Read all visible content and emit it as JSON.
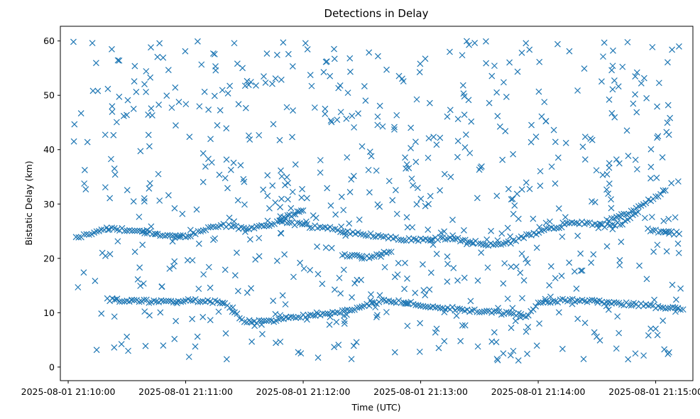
{
  "chart_data": {
    "type": "scatter",
    "title": "Detections in Delay",
    "xlabel": "Time (UTC)",
    "ylabel": "Bistatic Delay (km)",
    "x_is_datetime": true,
    "xlim": [
      "2025-08-01 21:09:56",
      "2025-08-01 21:15:19"
    ],
    "ylim": [
      -2.5,
      62.7
    ],
    "grid": false,
    "legend": "none",
    "marker": "x",
    "color": "#1f77b4",
    "xtick_labels": [
      "2025-08-01 21:10:00",
      "2025-08-01 21:11:00",
      "2025-08-01 21:12:00",
      "2025-08-01 21:13:00",
      "2025-08-01 21:14:00",
      "2025-08-01 21:15:00"
    ],
    "ytick_labels": [
      "0",
      "10",
      "20",
      "30",
      "40",
      "50",
      "60"
    ],
    "track_upper": [
      [
        "2025-08-01 21:10:04",
        24.0
      ],
      [
        "2025-08-01 21:10:08",
        24.2
      ],
      [
        "2025-08-01 21:10:12",
        24.5
      ],
      [
        "2025-08-01 21:10:17",
        25.2
      ],
      [
        "2025-08-01 21:10:21",
        25.5
      ],
      [
        "2025-08-01 21:10:25",
        25.4
      ],
      [
        "2025-08-01 21:10:30",
        25.2
      ],
      [
        "2025-08-01 21:10:34",
        25.0
      ],
      [
        "2025-08-01 21:10:39",
        24.8
      ],
      [
        "2025-08-01 21:10:43",
        24.6
      ],
      [
        "2025-08-01 21:10:47",
        24.3
      ],
      [
        "2025-08-01 21:10:52",
        24.0
      ],
      [
        "2025-08-01 21:10:56",
        23.9
      ],
      [
        "2025-08-01 21:11:00",
        24.1
      ],
      [
        "2025-08-01 21:11:05",
        24.5
      ],
      [
        "2025-08-01 21:11:09",
        25.2
      ],
      [
        "2025-08-01 21:11:14",
        25.8
      ],
      [
        "2025-08-01 21:11:18",
        26.2
      ],
      [
        "2025-08-01 21:11:22",
        26.0
      ],
      [
        "2025-08-01 21:11:27",
        25.7
      ],
      [
        "2025-08-01 21:11:31",
        25.4
      ],
      [
        "2025-08-01 21:11:35",
        25.6
      ],
      [
        "2025-08-01 21:11:40",
        26.0
      ],
      [
        "2025-08-01 21:11:44",
        26.4
      ],
      [
        "2025-08-01 21:11:48",
        26.8
      ],
      [
        "2025-08-01 21:11:53",
        26.6
      ],
      [
        "2025-08-01 21:11:57",
        26.3
      ],
      [
        "2025-08-01 21:12:02",
        26.0
      ],
      [
        "2025-08-01 21:12:06",
        25.8
      ],
      [
        "2025-08-01 21:12:10",
        25.6
      ],
      [
        "2025-08-01 21:12:15",
        25.4
      ],
      [
        "2025-08-01 21:12:19",
        25.1
      ],
      [
        "2025-08-01 21:12:24",
        24.8
      ],
      [
        "2025-08-01 21:12:28",
        24.6
      ],
      [
        "2025-08-01 21:12:32",
        24.4
      ],
      [
        "2025-08-01 21:12:37",
        24.2
      ],
      [
        "2025-08-01 21:12:41",
        24.0
      ],
      [
        "2025-08-01 21:12:46",
        23.8
      ],
      [
        "2025-08-01 21:12:50",
        23.6
      ],
      [
        "2025-08-01 21:12:54",
        23.5
      ],
      [
        "2025-08-01 21:13:00",
        23.5
      ],
      [
        "2025-08-01 21:13:05",
        23.6
      ],
      [
        "2025-08-01 21:13:10",
        23.7
      ],
      [
        "2025-08-01 21:13:15",
        23.6
      ],
      [
        "2025-08-01 21:13:19",
        23.5
      ],
      [
        "2025-08-01 21:13:24",
        23.2
      ],
      [
        "2025-08-01 21:13:28",
        22.9
      ],
      [
        "2025-08-01 21:13:32",
        22.6
      ],
      [
        "2025-08-01 21:13:37",
        22.4
      ],
      [
        "2025-08-01 21:13:41",
        22.6
      ],
      [
        "2025-08-01 21:13:46",
        23.0
      ],
      [
        "2025-08-01 21:13:50",
        23.6
      ],
      [
        "2025-08-01 21:13:54",
        24.2
      ],
      [
        "2025-08-01 21:13:59",
        24.7
      ],
      [
        "2025-08-01 21:14:03",
        25.2
      ],
      [
        "2025-08-01 21:14:08",
        25.6
      ],
      [
        "2025-08-01 21:14:12",
        26.0
      ],
      [
        "2025-08-01 21:14:16",
        26.3
      ],
      [
        "2025-08-01 21:14:21",
        26.5
      ],
      [
        "2025-08-01 21:14:25",
        26.4
      ],
      [
        "2025-08-01 21:14:29",
        26.2
      ],
      [
        "2025-08-01 21:14:34",
        26.0
      ],
      [
        "2025-08-01 21:14:38",
        26.1
      ],
      [
        "2025-08-01 21:14:43",
        26.5
      ],
      [
        "2025-08-01 21:14:47",
        27.3
      ],
      [
        "2025-08-01 21:14:51",
        28.5
      ],
      [
        "2025-08-01 21:14:56",
        25.3
      ],
      [
        "2025-08-01 21:15:00",
        25.1
      ],
      [
        "2025-08-01 21:15:04",
        24.9
      ],
      [
        "2025-08-01 21:15:08",
        24.7
      ],
      [
        "2025-08-01 21:15:12",
        24.5
      ]
    ],
    "track_lower": [
      [
        "2025-08-01 21:10:20",
        12.4
      ],
      [
        "2025-08-01 21:10:25",
        12.3
      ],
      [
        "2025-08-01 21:10:30",
        12.2
      ],
      [
        "2025-08-01 21:10:35",
        12.2
      ],
      [
        "2025-08-01 21:10:40",
        12.1
      ],
      [
        "2025-08-01 21:10:45",
        12.0
      ],
      [
        "2025-08-01 21:10:50",
        12.0
      ],
      [
        "2025-08-01 21:10:55",
        12.1
      ],
      [
        "2025-08-01 21:11:00",
        12.2
      ],
      [
        "2025-08-01 21:11:05",
        12.2
      ],
      [
        "2025-08-01 21:11:10",
        12.1
      ],
      [
        "2025-08-01 21:11:15",
        12.0
      ],
      [
        "2025-08-01 21:11:20",
        11.8
      ],
      [
        "2025-08-01 21:11:25",
        10.0
      ],
      [
        "2025-08-01 21:11:30",
        8.5
      ],
      [
        "2025-08-01 21:11:35",
        8.3
      ],
      [
        "2025-08-01 21:11:40",
        8.4
      ],
      [
        "2025-08-01 21:11:45",
        8.6
      ],
      [
        "2025-08-01 21:11:50",
        8.9
      ],
      [
        "2025-08-01 21:11:55",
        9.2
      ],
      [
        "2025-08-01 21:12:00",
        9.4
      ],
      [
        "2025-08-01 21:12:05",
        9.6
      ],
      [
        "2025-08-01 21:12:10",
        9.8
      ],
      [
        "2025-08-01 21:12:15",
        10.0
      ],
      [
        "2025-08-01 21:12:20",
        10.2
      ],
      [
        "2025-08-01 21:12:25",
        10.5
      ],
      [
        "2025-08-01 21:12:30",
        11.0
      ],
      [
        "2025-08-01 21:12:35",
        11.6
      ],
      [
        "2025-08-01 21:12:40",
        12.1
      ],
      [
        "2025-08-01 21:12:45",
        12.2
      ],
      [
        "2025-08-01 21:12:50",
        12.0
      ],
      [
        "2025-08-01 21:12:55",
        11.8
      ],
      [
        "2025-08-01 21:13:00",
        11.5
      ],
      [
        "2025-08-01 21:13:05",
        11.2
      ],
      [
        "2025-08-01 21:13:10",
        11.0
      ],
      [
        "2025-08-01 21:13:15",
        10.8
      ],
      [
        "2025-08-01 21:13:20",
        10.6
      ],
      [
        "2025-08-01 21:13:25",
        10.4
      ],
      [
        "2025-08-01 21:13:30",
        10.2
      ],
      [
        "2025-08-01 21:13:35",
        10.1
      ],
      [
        "2025-08-01 21:13:40",
        10.0
      ],
      [
        "2025-08-01 21:13:45",
        9.8
      ],
      [
        "2025-08-01 21:13:50",
        9.7
      ],
      [
        "2025-08-01 21:13:55",
        9.5
      ],
      [
        "2025-08-01 21:14:00",
        11.8
      ],
      [
        "2025-08-01 21:14:05",
        12.1
      ],
      [
        "2025-08-01 21:14:10",
        12.2
      ],
      [
        "2025-08-01 21:14:15",
        12.3
      ],
      [
        "2025-08-01 21:14:20",
        12.3
      ],
      [
        "2025-08-01 21:14:25",
        12.2
      ],
      [
        "2025-08-01 21:14:30",
        12.0
      ],
      [
        "2025-08-01 21:14:35",
        11.8
      ],
      [
        "2025-08-01 21:14:40",
        11.7
      ],
      [
        "2025-08-01 21:14:45",
        11.6
      ],
      [
        "2025-08-01 21:14:50",
        11.5
      ],
      [
        "2025-08-01 21:14:55",
        11.3
      ],
      [
        "2025-08-01 21:15:00",
        11.1
      ],
      [
        "2025-08-01 21:15:05",
        10.9
      ],
      [
        "2025-08-01 21:15:10",
        10.8
      ],
      [
        "2025-08-01 21:15:14",
        10.6
      ]
    ],
    "track_mid": [
      [
        "2025-08-01 21:11:48",
        27.2
      ],
      [
        "2025-08-01 21:11:51",
        27.6
      ],
      [
        "2025-08-01 21:11:54",
        28.0
      ],
      [
        "2025-08-01 21:11:57",
        28.4
      ],
      [
        "2025-08-01 21:12:00",
        28.8
      ],
      [
        "2025-08-01 21:12:20",
        20.8
      ],
      [
        "2025-08-01 21:12:25",
        20.5
      ],
      [
        "2025-08-01 21:12:30",
        20.2
      ],
      [
        "2025-08-01 21:12:35",
        20.4
      ],
      [
        "2025-08-01 21:12:40",
        20.8
      ],
      [
        "2025-08-01 21:12:45",
        21.2
      ],
      [
        "2025-08-01 21:14:35",
        26.8
      ],
      [
        "2025-08-01 21:14:40",
        27.5
      ],
      [
        "2025-08-01 21:14:45",
        28.2
      ],
      [
        "2025-08-01 21:14:50",
        29.0
      ],
      [
        "2025-08-01 21:14:55",
        30.3
      ],
      [
        "2025-08-01 21:15:00",
        31.4
      ],
      [
        "2025-08-01 21:15:05",
        32.5
      ]
    ],
    "background_seed": 42,
    "background_count": 700
  }
}
